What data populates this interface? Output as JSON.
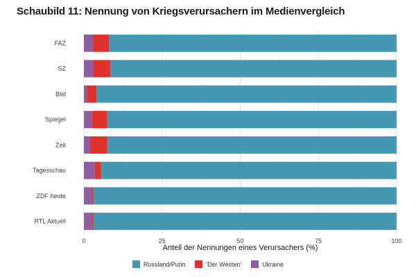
{
  "chart_data": {
    "type": "bar",
    "orientation": "horizontal",
    "stacked": true,
    "title": "Schaubild 11: Nennung von Kriegsverursachern im Medienvergleich",
    "xlabel": "Anteil der Nennungen eines Verursachers (%)",
    "ylabel": "",
    "xlim": [
      0,
      100
    ],
    "x_ticks": [
      0,
      25,
      50,
      75,
      100
    ],
    "grid": true,
    "legend_position": "bottom",
    "categories": [
      "FAZ",
      "SZ",
      "Bild",
      "Spiegel",
      "Zeit",
      "Tagesschau",
      "ZDF heute",
      "RTL Aktuell"
    ],
    "series": [
      {
        "name": "Ukraine",
        "color": "#8E5FA0",
        "values": [
          3,
          3,
          1,
          2.5,
          2,
          3.5,
          2.5,
          2.5
        ]
      },
      {
        "name": "'Der Westen'",
        "color": "#E0312B",
        "values": [
          5,
          5.5,
          3,
          5,
          5.5,
          2,
          0.5,
          0.5
        ]
      },
      {
        "name": "Russland/Putin",
        "color": "#4498B2",
        "values": [
          92,
          91.5,
          96,
          92.5,
          92.5,
          94.5,
          97,
          97
        ]
      }
    ],
    "legend_order": [
      "Russland/Putin",
      "'Der Westen'",
      "Ukraine"
    ]
  }
}
